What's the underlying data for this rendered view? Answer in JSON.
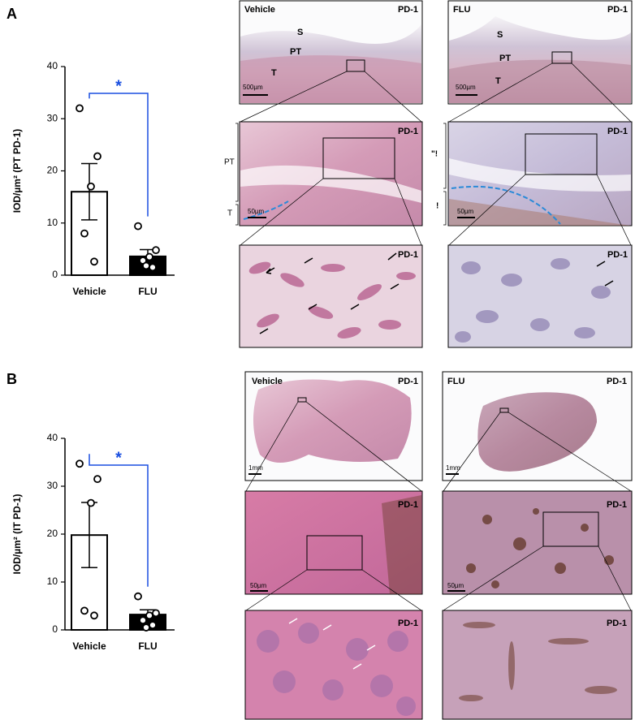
{
  "figure": {
    "panels": [
      {
        "letter": "A",
        "images": [
          {
            "labels": [
              "Vehicle",
              "PD-1",
              "S",
              "PT",
              "T",
              "500µm"
            ]
          },
          {
            "labels": [
              "FLU",
              "PD-1",
              "S",
              "PT",
              "T",
              "500µm"
            ]
          },
          {
            "labels": [
              "PD-1",
              "PT",
              "T",
              "50µm"
            ]
          },
          {
            "labels": [
              "PD-1",
              "\"!",
              "!",
              "50µm"
            ]
          },
          {
            "labels": [
              "PD-1"
            ]
          },
          {
            "labels": [
              "PD-1"
            ]
          }
        ]
      },
      {
        "letter": "B",
        "images": [
          {
            "labels": [
              "Vehicle",
              "PD-1",
              "1mm"
            ]
          },
          {
            "labels": [
              "FLU",
              "PD-1",
              "1mm"
            ]
          },
          {
            "labels": [
              "PD-1",
              "50µm"
            ]
          },
          {
            "labels": [
              "PD-1",
              "50µm"
            ]
          },
          {
            "labels": [
              "PD-1"
            ]
          },
          {
            "labels": [
              "PD-1"
            ]
          }
        ]
      }
    ]
  },
  "chart_data": [
    {
      "type": "bar",
      "ylabel": "IOD/µm² (PT PD-1)",
      "categories": [
        "Vehicle",
        "FLU"
      ],
      "values": [
        16,
        3.6
      ],
      "errors": [
        5.4,
        1.3
      ],
      "colors": [
        "#ffffff",
        "#000000"
      ],
      "points": [
        [
          32,
          22.8,
          17,
          8,
          2.6
        ],
        [
          9.4,
          4.8,
          3.5,
          2.8,
          1.5,
          1.8
        ]
      ],
      "ylim": [
        0,
        40
      ],
      "yticks": [
        0,
        10,
        20,
        30,
        40
      ],
      "annotation": "*",
      "annotation_color": "#1a4fe0"
    },
    {
      "type": "bar",
      "ylabel": "IOD/µm² (IT PD-1)",
      "categories": [
        "Vehicle",
        "FLU"
      ],
      "values": [
        19.8,
        3.2
      ],
      "errors": [
        6.8,
        1
      ],
      "colors": [
        "#ffffff",
        "#000000"
      ],
      "points": [
        [
          34.7,
          31.5,
          26.5,
          4,
          3
        ],
        [
          7,
          3.5,
          3,
          2,
          1,
          0.5
        ]
      ],
      "ylim": [
        0,
        40
      ],
      "yticks": [
        0,
        10,
        20,
        30,
        40
      ],
      "annotation": "*",
      "annotation_color": "#1a4fe0"
    }
  ]
}
